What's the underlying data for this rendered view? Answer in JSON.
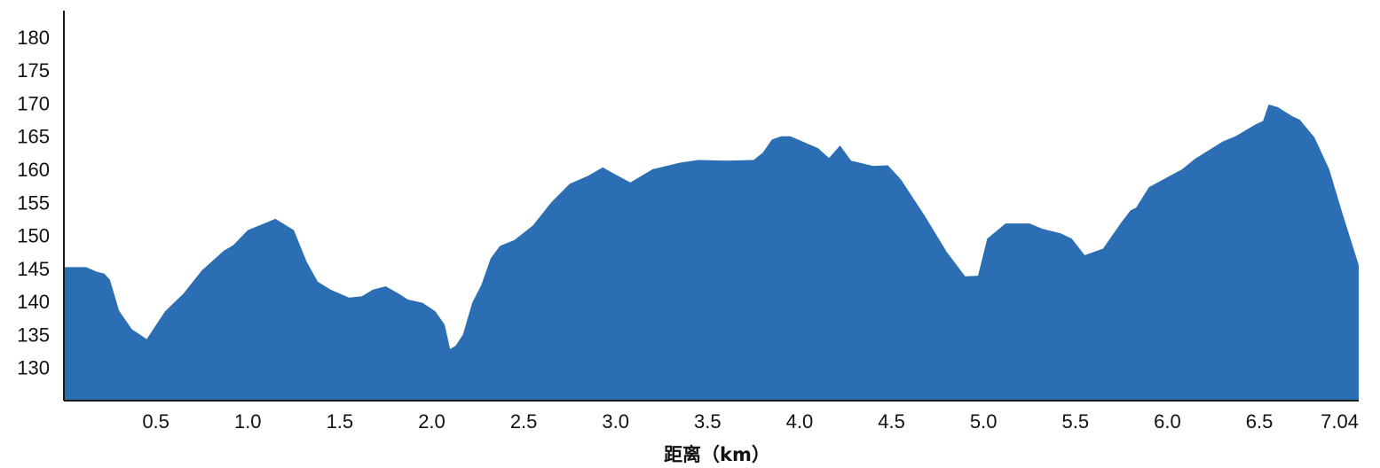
{
  "chart_data": {
    "type": "area",
    "title": "",
    "xlabel": "距离（km）",
    "ylabel": "",
    "xlim": [
      0,
      7.04
    ],
    "ylim": [
      125,
      184
    ],
    "x_ticks": [
      0.5,
      1.0,
      1.5,
      2.0,
      2.5,
      3.0,
      3.5,
      4.0,
      4.5,
      5.0,
      5.5,
      6.0,
      6.5,
      7.04
    ],
    "x_tick_labels": [
      "0.5",
      "1.0",
      "1.5",
      "2.0",
      "2.5",
      "3.0",
      "3.5",
      "4.0",
      "4.5",
      "5.0",
      "5.5",
      "6.0",
      "6.5",
      "7.04"
    ],
    "y_ticks": [
      130,
      135,
      140,
      145,
      150,
      155,
      160,
      165,
      170,
      175,
      180
    ],
    "y_tick_labels": [
      "130",
      "135",
      "140",
      "145",
      "150",
      "155",
      "160",
      "165",
      "170",
      "175",
      "180"
    ],
    "grid": false,
    "fill_color": "#2b6eb4",
    "series": [
      {
        "x": [
          0,
          0.12,
          0.18,
          0.22,
          0.25,
          0.3,
          0.37,
          0.45,
          0.55,
          0.65,
          0.75,
          0.87,
          0.92,
          1.0,
          1.08,
          1.15,
          1.25,
          1.32,
          1.38,
          1.45,
          1.55,
          1.62,
          1.68,
          1.75,
          1.82,
          1.87,
          1.95,
          2.02,
          2.07,
          2.1,
          2.13,
          2.17,
          2.22,
          2.27,
          2.32,
          2.37,
          2.45,
          2.55,
          2.65,
          2.75,
          2.85,
          2.93,
          2.98,
          3.08,
          3.2,
          3.35,
          3.45,
          3.6,
          3.75,
          3.8,
          3.85,
          3.9,
          3.95,
          4.05,
          4.1,
          4.16,
          4.22,
          4.28,
          4.4,
          4.48,
          4.55,
          4.68,
          4.8,
          4.9,
          4.97,
          5.02,
          5.12,
          5.25,
          5.32,
          5.42,
          5.48,
          5.55,
          5.65,
          5.75,
          5.8,
          5.83,
          5.9,
          6.0,
          6.08,
          6.15,
          6.3,
          6.37,
          6.48,
          6.52,
          6.55,
          6.6,
          6.68,
          6.72,
          6.8,
          6.88,
          6.95,
          7.04
        ],
        "y": [
          145.2,
          145.2,
          144.5,
          144.2,
          143.3,
          138.6,
          135.8,
          134.3,
          138.5,
          141.2,
          144.7,
          147.7,
          148.5,
          150.8,
          151.7,
          152.5,
          150.8,
          146,
          143,
          141.8,
          140.6,
          140.8,
          141.8,
          142.3,
          141.2,
          140.3,
          139.8,
          138.5,
          136.5,
          132.8,
          133.3,
          135,
          139.8,
          142.5,
          146.5,
          148.4,
          149.3,
          151.5,
          155,
          157.8,
          159,
          160.3,
          159.5,
          158,
          160,
          161,
          161.4,
          161.3,
          161.4,
          162.5,
          164.5,
          165,
          165,
          163.8,
          163.2,
          161.7,
          163.6,
          161.3,
          160.5,
          160.6,
          158.5,
          153,
          147.5,
          143.8,
          143.9,
          149.5,
          151.8,
          151.8,
          151,
          150.3,
          149.5,
          147,
          148,
          152,
          153.8,
          154.2,
          157.3,
          158.8,
          160,
          161.6,
          164.2,
          165,
          166.8,
          167.3,
          169.8,
          169.4,
          168,
          167.5,
          164.8,
          160,
          153.5,
          145.5
        ]
      }
    ]
  }
}
